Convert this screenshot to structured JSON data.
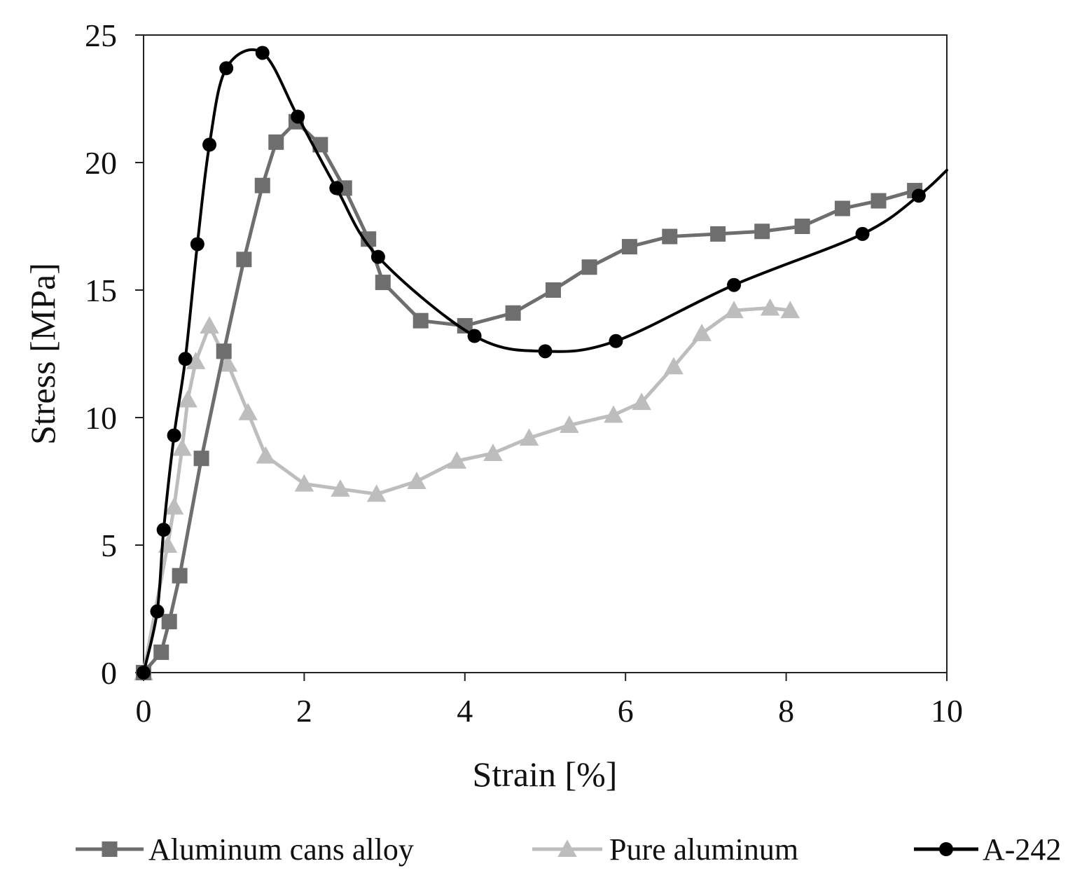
{
  "chart_data": {
    "type": "line",
    "title": "",
    "xlabel": "Strain [%]",
    "ylabel": "Stress [MPa]",
    "xlim": [
      0,
      10
    ],
    "ylim": [
      0,
      25
    ],
    "xticks": [
      0,
      2,
      4,
      6,
      8,
      10
    ],
    "yticks": [
      0,
      5,
      10,
      15,
      20,
      25
    ],
    "grid": false,
    "legend_position": "bottom",
    "series": [
      {
        "name": "Aluminum cans alloy",
        "color": "#6e6e6e",
        "marker": "square",
        "x": [
          0.0,
          0.22,
          0.32,
          0.45,
          0.72,
          1.0,
          1.25,
          1.48,
          1.65,
          1.9,
          2.2,
          2.5,
          2.8,
          2.98,
          3.45,
          4.0,
          4.6,
          5.1,
          5.55,
          6.05,
          6.55,
          7.15,
          7.7,
          8.2,
          8.7,
          9.15,
          9.6
        ],
        "y": [
          0.0,
          0.8,
          2.0,
          3.8,
          8.4,
          12.6,
          16.2,
          19.1,
          20.8,
          21.6,
          20.7,
          19.0,
          17.0,
          15.3,
          13.8,
          13.6,
          14.1,
          15.0,
          15.9,
          16.7,
          17.1,
          17.2,
          17.3,
          17.5,
          18.2,
          18.5,
          18.9
        ]
      },
      {
        "name": "Pure aluminum",
        "color": "#bdbdbd",
        "marker": "triangle",
        "x": [
          0.0,
          0.3,
          0.38,
          0.48,
          0.55,
          0.65,
          0.82,
          1.05,
          1.3,
          1.52,
          2.0,
          2.45,
          2.9,
          3.4,
          3.9,
          4.35,
          4.8,
          5.3,
          5.85,
          6.2,
          6.6,
          6.95,
          7.35,
          7.8,
          8.05
        ],
        "y": [
          0.0,
          5.0,
          6.5,
          8.8,
          10.7,
          12.2,
          13.6,
          12.1,
          10.2,
          8.5,
          7.4,
          7.2,
          7.0,
          7.5,
          8.3,
          8.6,
          9.2,
          9.7,
          10.1,
          10.6,
          12.0,
          13.3,
          14.2,
          14.3,
          14.2
        ]
      },
      {
        "name": "A-242",
        "color": "#000000",
        "marker": "circle",
        "x": [
          0.0,
          0.17,
          0.25,
          0.38,
          0.52,
          0.67,
          0.82,
          1.03,
          1.48,
          1.92,
          2.4,
          2.92,
          4.12,
          5.0,
          5.88,
          7.35,
          8.95,
          9.65
        ],
        "y": [
          0.0,
          2.4,
          5.6,
          9.3,
          12.3,
          16.8,
          20.7,
          23.7,
          24.3,
          21.8,
          19.0,
          16.3,
          13.2,
          12.6,
          13.0,
          15.2,
          17.2,
          18.7
        ],
        "x_curve_end": 10.0,
        "y_curve_end": 19.7
      }
    ]
  }
}
